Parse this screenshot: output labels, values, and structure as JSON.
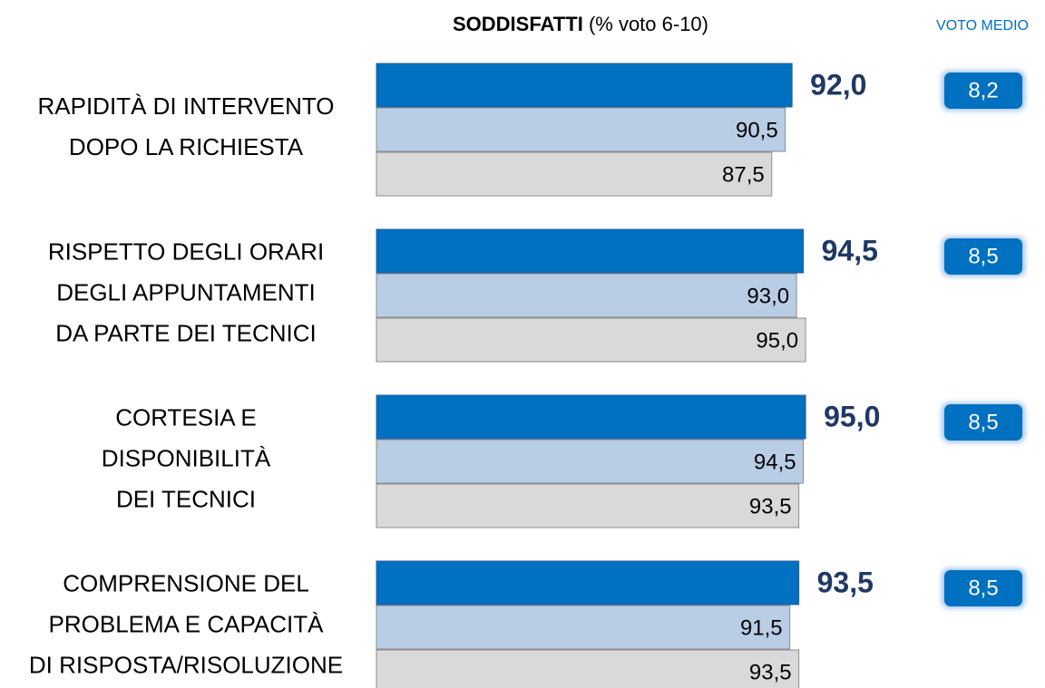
{
  "chart_data": {
    "type": "bar",
    "orientation": "horizontal",
    "title": "SODDISFATTI",
    "subtitle": "(% voto 6-10)",
    "categories": [
      "RAPIDITÀ DI INTERVENTO\nDOPO LA RICHIESTA",
      "RISPETTO DEGLI ORARI\nDEGLI APPUNTAMENTI\nDA PARTE DEI TECNICI",
      "CORTESIA E\nDISPONIBILITÀ\nDEI TECNICI",
      "COMPRENSIONE DEL\nPROBLEMA E CAPACITÀ\nDI RISPOSTA/RISOLUZIONE"
    ],
    "series": [
      {
        "color": "#0070c0",
        "values": [
          92.0,
          94.5,
          95.0,
          93.5
        ],
        "value_labels": [
          "92,0",
          "94,5",
          "95,0",
          "93,5"
        ]
      },
      {
        "color": "#b9cde5",
        "values": [
          90.5,
          93.0,
          94.5,
          91.5
        ],
        "value_labels": [
          "90,5",
          "93,0",
          "94,5",
          "91,5"
        ]
      },
      {
        "color": "#d9d9d9",
        "values": [
          87.5,
          95.0,
          93.5,
          93.5
        ],
        "value_labels": [
          "87,5",
          "95,0",
          "93,5",
          "93,5"
        ]
      }
    ],
    "xlim": [
      0,
      100
    ],
    "average_scores": {
      "title": "VOTO MEDIO",
      "color": "#0070c0",
      "values": [
        8.2,
        8.5,
        8.5,
        8.5
      ],
      "value_labels": [
        "8,2",
        "8,5",
        "8,5",
        "8,5"
      ]
    }
  }
}
